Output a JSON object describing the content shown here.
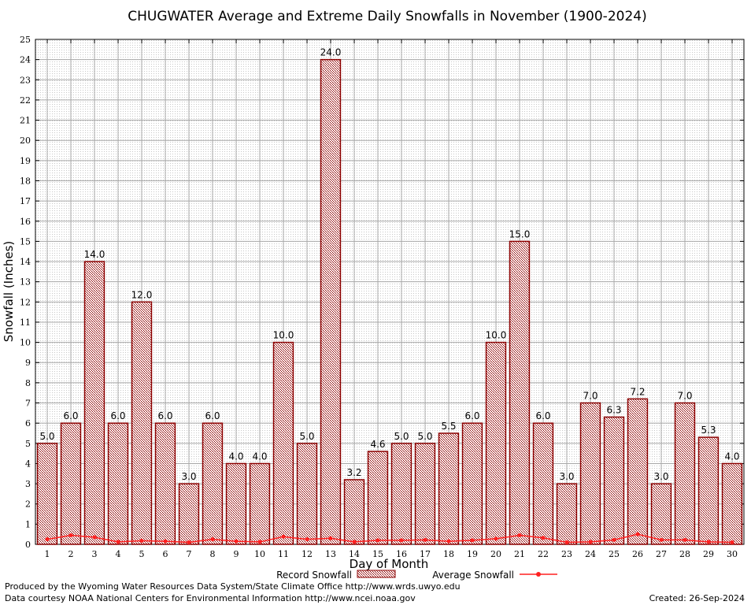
{
  "chart_data": {
    "type": "bar",
    "title": "CHUGWATER Average and Extreme Daily Snowfalls in November (1900-2024)",
    "xlabel": "Day of Month",
    "ylabel": "Snowfall (Inches)",
    "ylim": [
      0,
      25
    ],
    "yticks": [
      "0",
      "1",
      "2",
      "3",
      "4",
      "5",
      "6",
      "7",
      "8",
      "9",
      "10",
      "11",
      "12",
      "13",
      "14",
      "15",
      "16",
      "17",
      "18",
      "19",
      "20",
      "21",
      "22",
      "23",
      "24",
      "25"
    ],
    "categories": [
      "1",
      "2",
      "3",
      "4",
      "5",
      "6",
      "7",
      "8",
      "9",
      "10",
      "11",
      "12",
      "13",
      "14",
      "15",
      "16",
      "17",
      "18",
      "19",
      "20",
      "21",
      "22",
      "23",
      "24",
      "25",
      "26",
      "27",
      "28",
      "29",
      "30"
    ],
    "grid": true,
    "legend_position": "bottom",
    "series": [
      {
        "name": "Record Snowfall",
        "type": "bar",
        "color": "#8b0000",
        "values": [
          5.0,
          6.0,
          14.0,
          6.0,
          12.0,
          6.0,
          3.0,
          6.0,
          4.0,
          4.0,
          10.0,
          5.0,
          24.0,
          3.2,
          4.6,
          5.0,
          5.0,
          5.5,
          6.0,
          10.0,
          15.0,
          6.0,
          3.0,
          7.0,
          6.3,
          7.2,
          3.0,
          7.0,
          5.3,
          4.0
        ],
        "labels": [
          "5.0",
          "6.0",
          "14.0",
          "6.0",
          "12.0",
          "6.0",
          "3.0",
          "6.0",
          "4.0",
          "4.0",
          "10.0",
          "5.0",
          "24.0",
          "3.2",
          "4.6",
          "5.0",
          "5.0",
          "5.5",
          "6.0",
          "10.0",
          "15.0",
          "6.0",
          "3.0",
          "7.0",
          "6.3",
          "7.2",
          "3.0",
          "7.0",
          "5.3",
          "4.0"
        ]
      },
      {
        "name": "Average Snowfall",
        "type": "line",
        "color": "#ff2020",
        "values": [
          0.25,
          0.45,
          0.35,
          0.12,
          0.18,
          0.15,
          0.1,
          0.25,
          0.15,
          0.12,
          0.38,
          0.25,
          0.3,
          0.12,
          0.2,
          0.2,
          0.22,
          0.15,
          0.2,
          0.28,
          0.45,
          0.32,
          0.1,
          0.12,
          0.22,
          0.5,
          0.22,
          0.22,
          0.12,
          0.1
        ]
      }
    ]
  },
  "footer": {
    "line1": "Produced by the Wyoming Water Resources Data System/State Climate Office http://www.wrds.uwyo.edu",
    "line2": "Data courtesy NOAA National Centers for Environmental Information http://www.ncei.noaa.gov",
    "created": "Created:  26-Sep-2024"
  }
}
